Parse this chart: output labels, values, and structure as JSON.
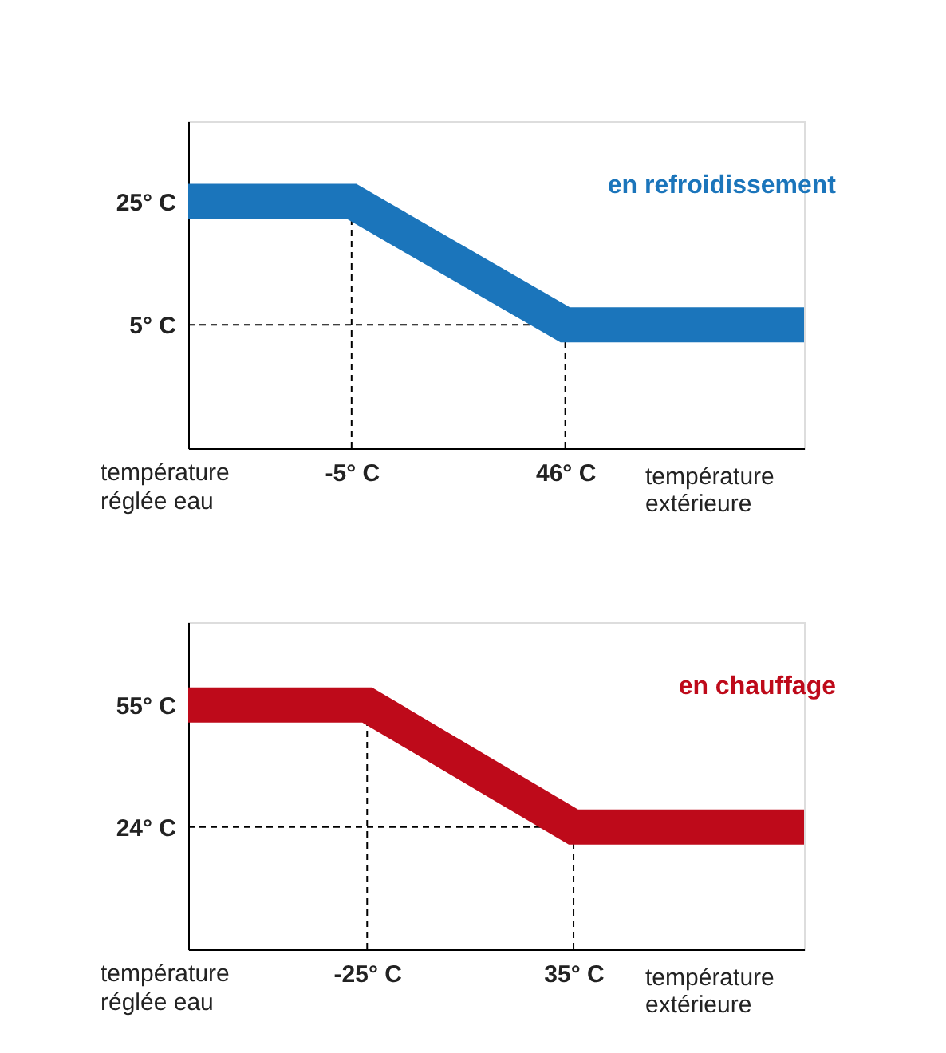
{
  "chart_data": [
    {
      "type": "line",
      "xlabel": "température extérieure",
      "ylabel": "température réglée eau",
      "xlim": [
        -44,
        103
      ],
      "ylim": [
        -15,
        38
      ],
      "xticks": [
        {
          "value": -5,
          "label": "-5° C"
        },
        {
          "value": 46,
          "label": "46° C"
        }
      ],
      "yticks": [
        {
          "value": 25,
          "label": "25° C"
        },
        {
          "value": 5,
          "label": "5° C"
        }
      ],
      "series": [
        {
          "name": "en refroidissement",
          "color": "#1b75bb",
          "x": [
            -44,
            -5,
            46,
            103
          ],
          "values": [
            25,
            25,
            5,
            5
          ]
        }
      ],
      "ref_lines": [
        {
          "axis": "x",
          "value": -5,
          "line_style": "dashed"
        },
        {
          "axis": "x",
          "value": 46,
          "line_style": "dashed"
        },
        {
          "axis": "y",
          "value": 5,
          "line_style": "dashed"
        }
      ],
      "grid": false
    },
    {
      "type": "line",
      "xlabel": "température extérieure",
      "ylabel": "température réglée eau",
      "xlim": [
        -77,
        102
      ],
      "ylim": [
        -7,
        76
      ],
      "xticks": [
        {
          "value": -25,
          "label": "-25° C"
        },
        {
          "value": 35,
          "label": "35° C"
        }
      ],
      "yticks": [
        {
          "value": 55,
          "label": "55° C"
        },
        {
          "value": 24,
          "label": "24° C"
        }
      ],
      "series": [
        {
          "name": "en chauffage",
          "color": "#be0a1a",
          "x": [
            -77,
            -25,
            35,
            102
          ],
          "values": [
            55,
            55,
            24,
            24
          ]
        }
      ],
      "ref_lines": [
        {
          "axis": "x",
          "value": -25,
          "line_style": "dashed"
        },
        {
          "axis": "x",
          "value": 35,
          "line_style": "dashed"
        },
        {
          "axis": "y",
          "value": 24,
          "line_style": "dashed"
        }
      ],
      "grid": false
    }
  ]
}
